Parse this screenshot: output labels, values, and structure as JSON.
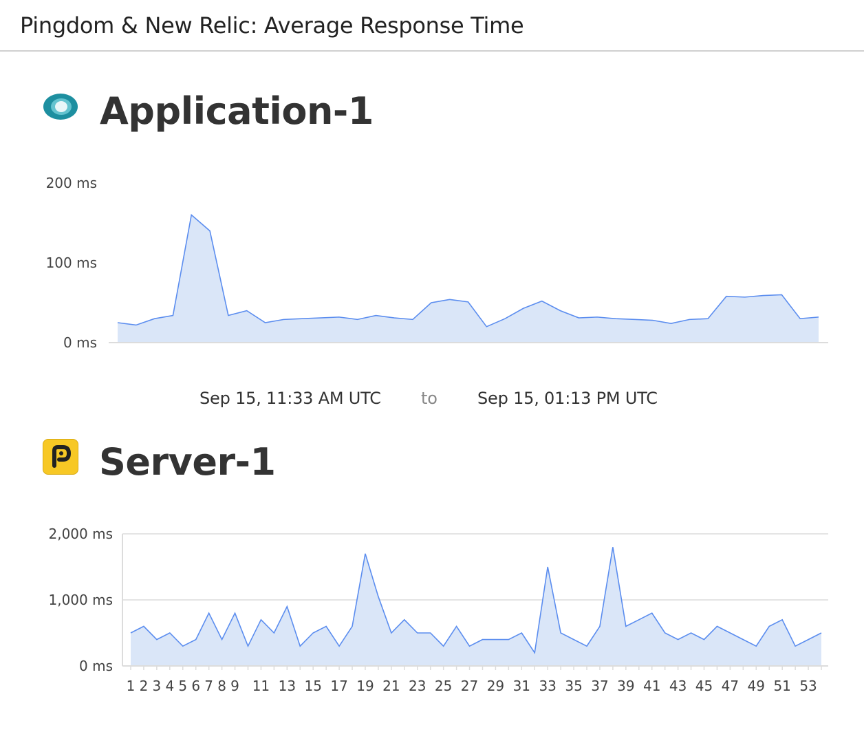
{
  "header": {
    "title": "Pingdom & New Relic: Average Response Time"
  },
  "sections": [
    {
      "title": "Application-1",
      "icon": "new-relic-icon"
    },
    {
      "title": "Server-1",
      "icon": "pingdom-icon"
    }
  ],
  "time_range": {
    "start": "Sep 15, 11:33 AM UTC",
    "separator": "to",
    "end": "Sep 15, 01:13 PM UTC"
  },
  "colors": {
    "line": "#5b8def",
    "fill": "#dae6f8",
    "grid": "#dcdcdc",
    "new_relic_ring": "#1d8fa0",
    "pingdom_yellow": "#f7c825"
  },
  "chart_data": [
    {
      "type": "area",
      "title": "Application-1",
      "ylim": [
        0,
        200
      ],
      "yticks": [
        "0 ms",
        "100 ms",
        "200 ms"
      ],
      "ytick_values": [
        0,
        100,
        200
      ],
      "grid": false,
      "values": [
        25,
        22,
        30,
        34,
        160,
        140,
        34,
        40,
        25,
        29,
        30,
        31,
        32,
        29,
        34,
        31,
        29,
        50,
        54,
        51,
        20,
        30,
        43,
        52,
        40,
        31,
        32,
        30,
        29,
        28,
        24,
        29,
        30,
        58,
        57,
        59,
        60,
        30,
        32
      ]
    },
    {
      "type": "area",
      "title": "Server-1",
      "ylim": [
        0,
        2000
      ],
      "yticks": [
        "0 ms",
        "1,000 ms",
        "2,000 ms"
      ],
      "ytick_values": [
        0,
        1000,
        2000
      ],
      "grid": true,
      "x": [
        1,
        2,
        3,
        4,
        5,
        6,
        7,
        8,
        9,
        10,
        11,
        12,
        13,
        14,
        15,
        16,
        17,
        18,
        19,
        20,
        21,
        22,
        23,
        24,
        25,
        26,
        27,
        28,
        29,
        30,
        31,
        32,
        33,
        34,
        35,
        36,
        37,
        38,
        39,
        40,
        41,
        42,
        43,
        44,
        45,
        46,
        47,
        48,
        49,
        50,
        51,
        52,
        53,
        54
      ],
      "xtick_labels": [
        "1",
        "2",
        "3",
        "4",
        "5",
        "6",
        "7",
        "8",
        "9",
        "11",
        "13",
        "15",
        "17",
        "19",
        "21",
        "23",
        "25",
        "27",
        "29",
        "31",
        "33",
        "35",
        "37",
        "39",
        "41",
        "43",
        "45",
        "47",
        "49",
        "51",
        "53"
      ],
      "values": [
        500,
        600,
        400,
        500,
        300,
        400,
        800,
        400,
        800,
        300,
        700,
        500,
        900,
        300,
        500,
        600,
        300,
        600,
        1700,
        1050,
        500,
        700,
        500,
        500,
        300,
        600,
        300,
        400,
        400,
        400,
        500,
        200,
        1500,
        500,
        400,
        300,
        600,
        1800,
        600,
        700,
        800,
        500,
        400,
        500,
        400,
        600,
        500,
        400,
        300,
        600,
        700,
        300,
        400,
        500
      ]
    }
  ]
}
